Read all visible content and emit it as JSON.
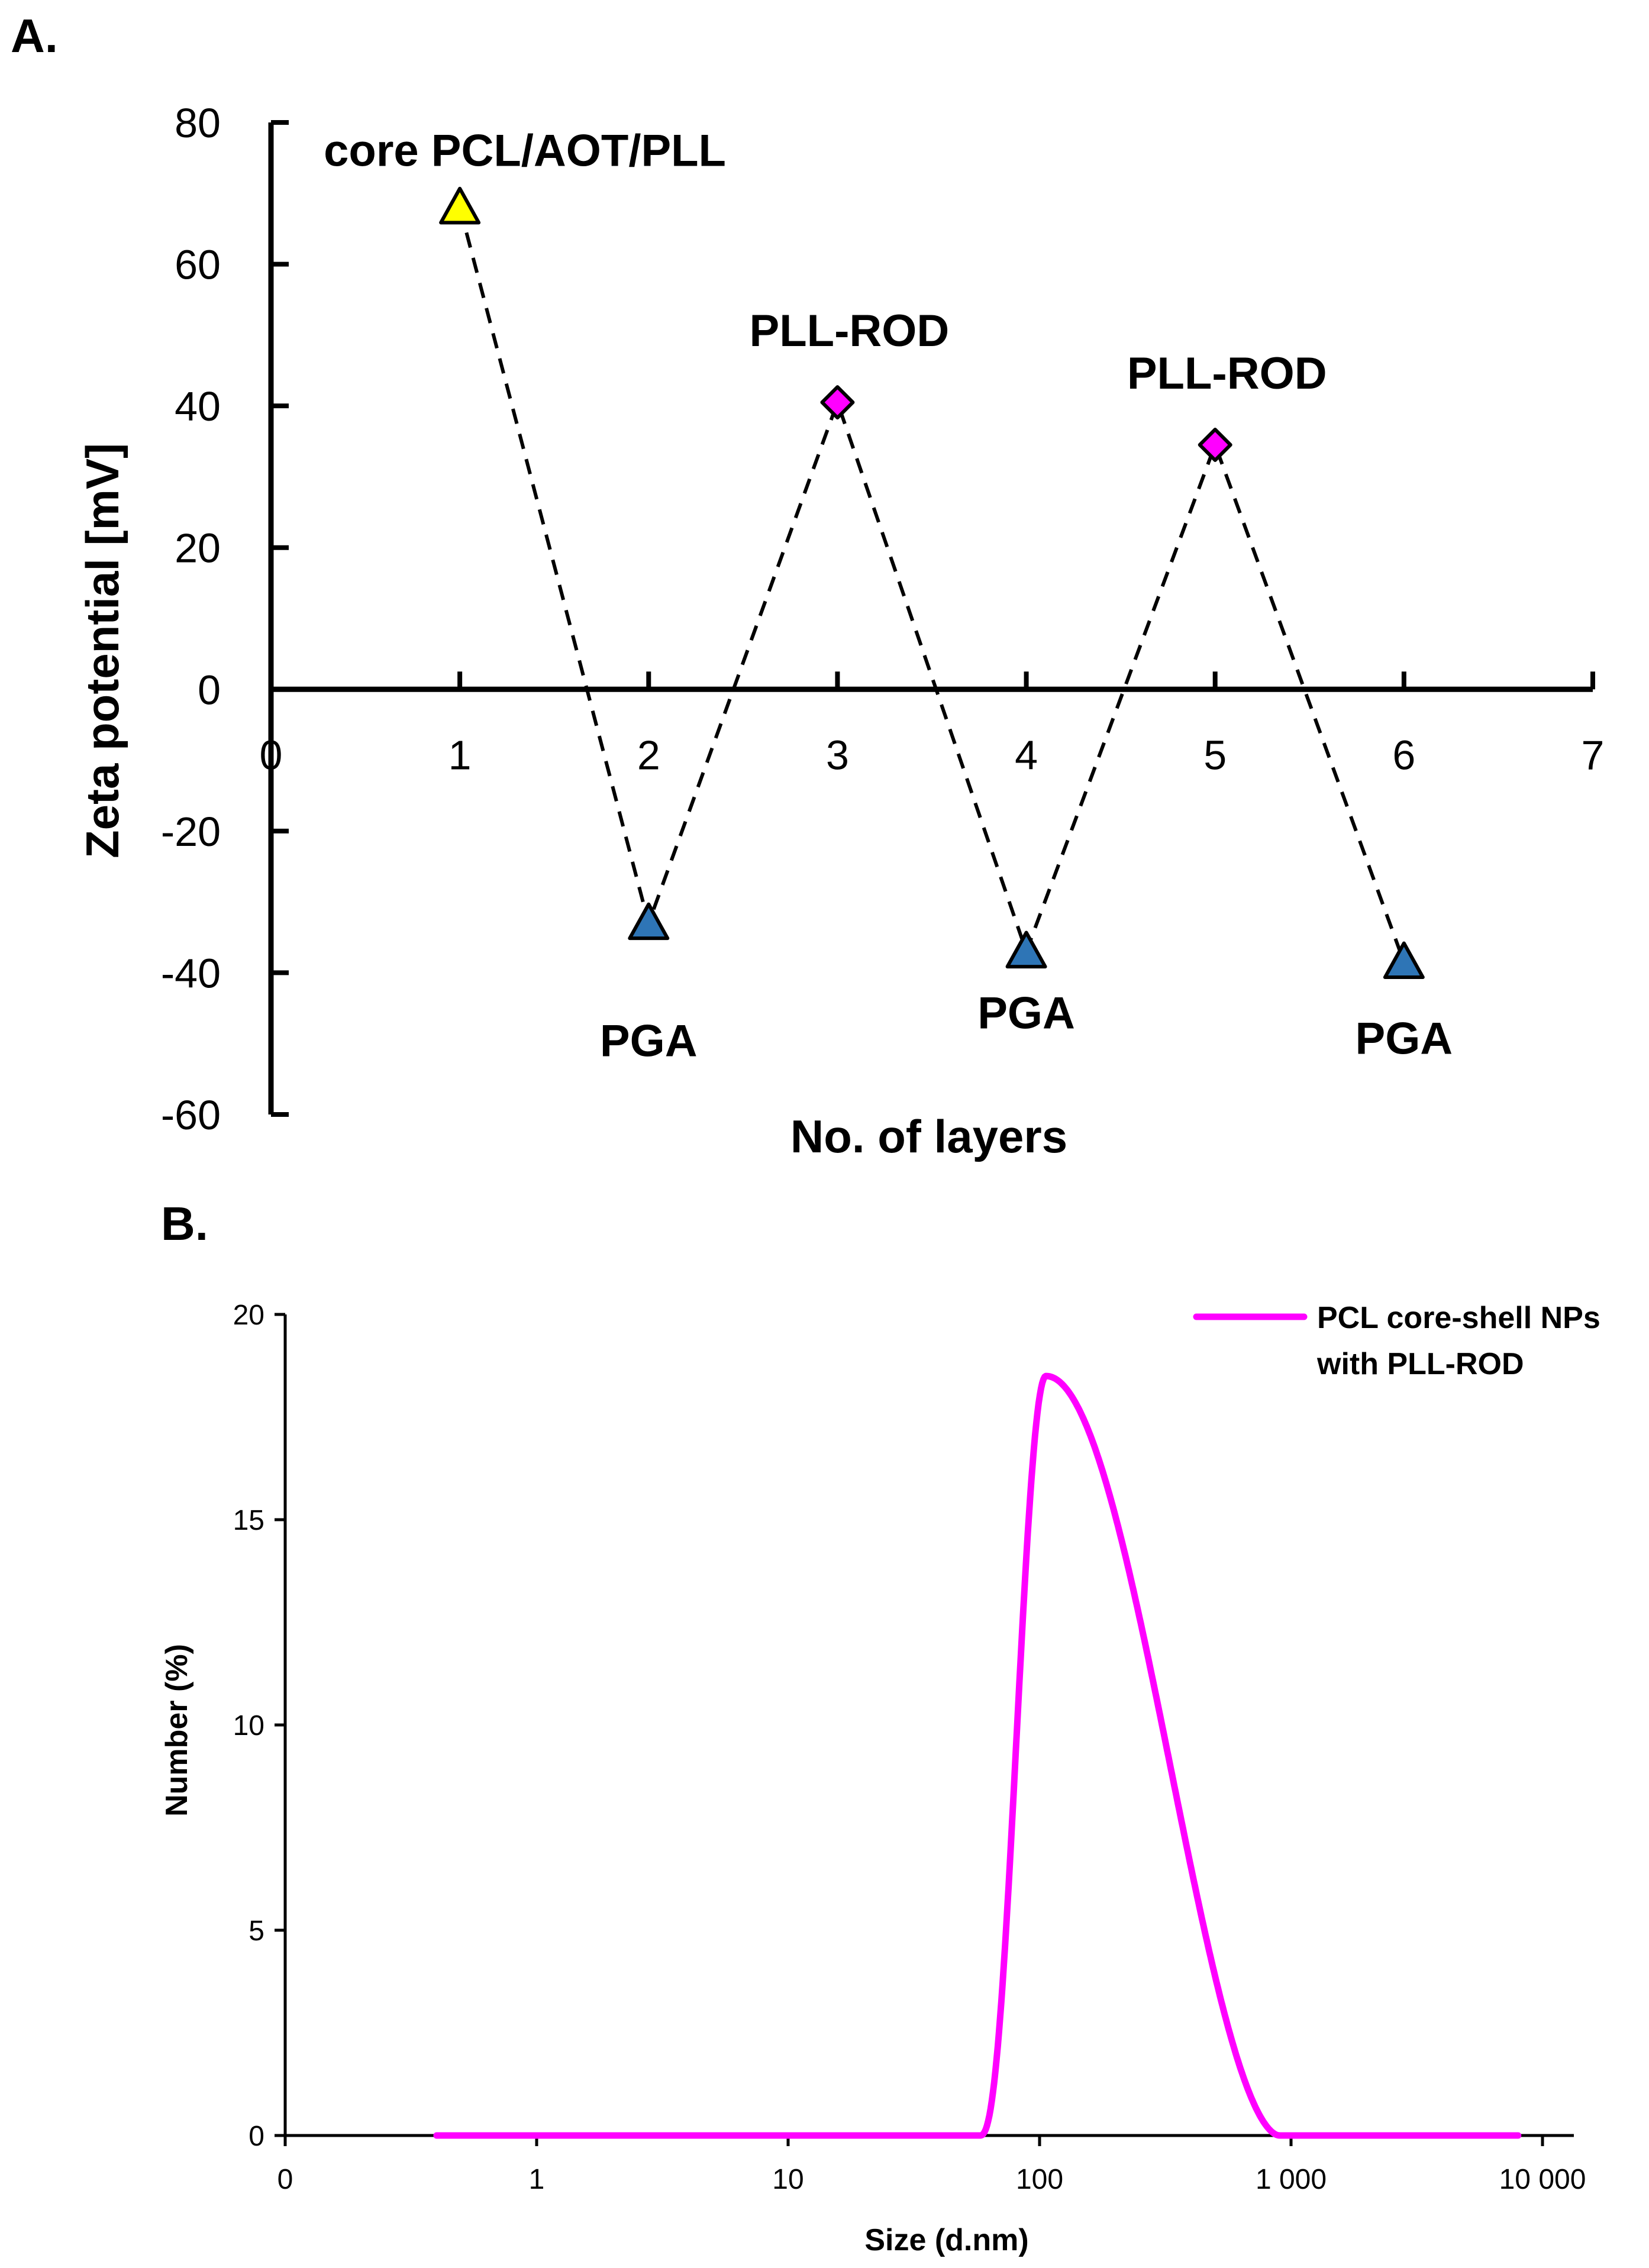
{
  "chart_data": [
    {
      "panel_label": "A.",
      "type": "line",
      "xlabel": "No. of layers",
      "ylabel": "Zeta potential [mV]",
      "xlim": [
        0,
        7
      ],
      "ylim": [
        -60,
        80
      ],
      "x_ticks": [
        "0",
        "1",
        "2",
        "3",
        "4",
        "5",
        "6",
        "7"
      ],
      "y_ticks": [
        "80",
        "60",
        "40",
        "20",
        "0",
        "-20",
        "-40",
        "-60"
      ],
      "line_style": "dashed",
      "points": [
        {
          "x": 1,
          "y": 68,
          "marker": "triangle",
          "color": "#ffff00",
          "label": "core PCL/AOT/PLL"
        },
        {
          "x": 2,
          "y": -33,
          "marker": "triangle",
          "color": "#2e75b6",
          "label": "PGA"
        },
        {
          "x": 3,
          "y": 40.5,
          "marker": "diamond",
          "color": "#ff00ff",
          "label": "PLL-ROD"
        },
        {
          "x": 4,
          "y": -37,
          "marker": "triangle",
          "color": "#2e75b6",
          "label": "PGA"
        },
        {
          "x": 5,
          "y": 34.5,
          "marker": "diamond",
          "color": "#ff00ff",
          "label": "PLL-ROD"
        },
        {
          "x": 6,
          "y": -38.5,
          "marker": "triangle",
          "color": "#2e75b6",
          "label": "PGA"
        }
      ]
    },
    {
      "panel_label": "B.",
      "type": "line",
      "xlabel": "Size (d.nm)",
      "ylabel": "Number (%)",
      "x_scale": "log",
      "x_ticks": [
        "0",
        "1",
        "10",
        "100",
        "1 000",
        "10 000"
      ],
      "y_ticks": [
        "20",
        "15",
        "10",
        "5",
        "0"
      ],
      "ylim": [
        0,
        20
      ],
      "series": [
        {
          "name": "PCL core-shell NPs with PLL-ROD",
          "color": "#ff00ff",
          "x_range_nm": [
            0.4,
            8000
          ],
          "peak_size_nm": 106,
          "peak_value": 18.5,
          "onset_nm": 58,
          "end_nm": 900
        }
      ],
      "legend": [
        "PCL core-shell NPs",
        "with PLL-ROD"
      ],
      "legend_position": "top-right"
    }
  ]
}
